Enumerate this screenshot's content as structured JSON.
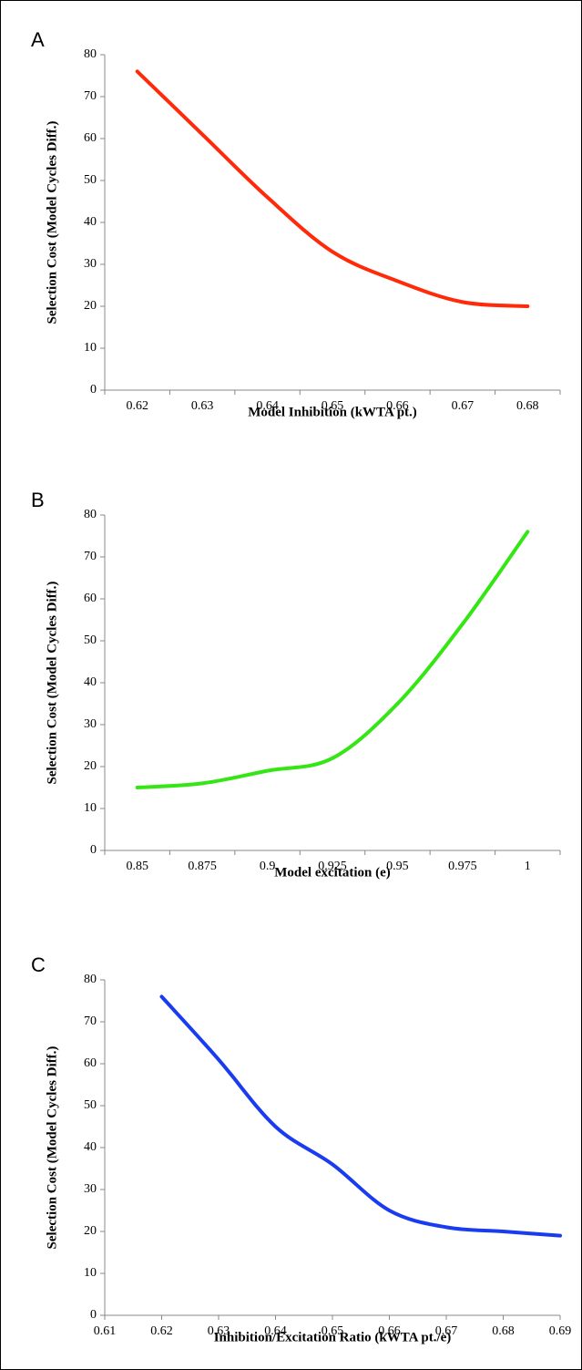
{
  "chart_data": [
    {
      "type": "line",
      "label": "A",
      "x_label": "Model Inhibition (kWTA pt.)",
      "y_label": "Selection Cost (Model Cycles Diff.)",
      "categories": [
        "0.62",
        "0.63",
        "0.64",
        "0.65",
        "0.66",
        "0.67",
        "0.68"
      ],
      "values": [
        76,
        61,
        46,
        33,
        26,
        21,
        20
      ],
      "color": "#ff2a0a",
      "ylim": [
        0,
        80
      ],
      "yticks": [
        0,
        10,
        20,
        30,
        40,
        50,
        60,
        70,
        80
      ]
    },
    {
      "type": "line",
      "label": "B",
      "x_label": "Model excitation (e)",
      "y_label": "Selection Cost  (Model Cycles Diff.)",
      "categories": [
        "0.85",
        "0.875",
        "0.9",
        "0.925",
        "0.95",
        "0.975",
        "1"
      ],
      "values": [
        15,
        16,
        19,
        22,
        35,
        54,
        76
      ],
      "color": "#33e614",
      "ylim": [
        0,
        80
      ],
      "yticks": [
        0,
        10,
        20,
        30,
        40,
        50,
        60,
        70,
        80
      ]
    },
    {
      "type": "line",
      "label": "C",
      "x_label": "Inhibition/Excitation Ratio (kWTA pt./e)",
      "y_label": "Selection Cost (Model Cycles Diff.)",
      "x": [
        0.62,
        0.63,
        0.64,
        0.65,
        0.66,
        0.67,
        0.68,
        0.69
      ],
      "values": [
        76,
        61,
        45,
        36,
        25,
        21,
        20,
        19
      ],
      "color": "#1a3cf0",
      "xlim": [
        0.61,
        0.69
      ],
      "xticks": [
        0.61,
        0.62,
        0.63,
        0.64,
        0.65,
        0.66,
        0.67,
        0.68,
        0.69
      ],
      "ylim": [
        0,
        80
      ],
      "yticks": [
        0,
        10,
        20,
        30,
        40,
        50,
        60,
        70,
        80
      ]
    }
  ]
}
